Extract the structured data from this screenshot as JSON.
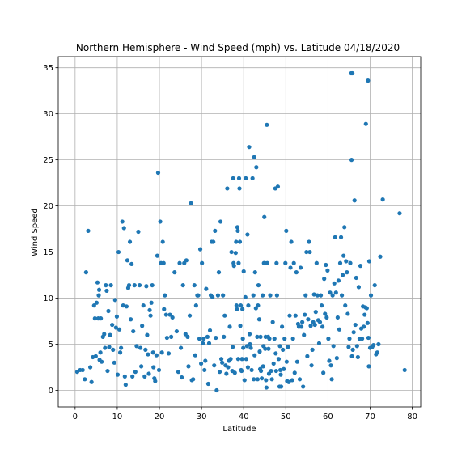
{
  "chart_data": {
    "type": "scatter",
    "title": "Northern Hemisphere - Wind Speed (mph) vs. Latitude 04/18/2020",
    "xlabel": "Latitude",
    "ylabel": "Wind Speed",
    "xlim": [
      -4,
      82
    ],
    "ylim": [
      -1.8,
      36.2
    ],
    "xticks": [
      0,
      10,
      20,
      30,
      40,
      50,
      60,
      70,
      80
    ],
    "yticks": [
      0,
      5,
      10,
      15,
      20,
      25,
      30,
      35
    ],
    "grid": true,
    "marker_color": "#1f77b4",
    "points": [
      [
        0.5,
        2.0
      ],
      [
        1.2,
        2.2
      ],
      [
        1.8,
        2.2
      ],
      [
        2.3,
        1.2
      ],
      [
        2.6,
        12.8
      ],
      [
        3.1,
        17.3
      ],
      [
        3.6,
        2.5
      ],
      [
        3.9,
        0.9
      ],
      [
        4.2,
        3.6
      ],
      [
        4.5,
        9.2
      ],
      [
        4.7,
        7.8
      ],
      [
        4.9,
        3.7
      ],
      [
        5.1,
        9.5
      ],
      [
        5.3,
        11.7
      ],
      [
        5.5,
        7.8
      ],
      [
        5.6,
        10.3
      ],
      [
        5.7,
        10.9
      ],
      [
        5.8,
        3.3
      ],
      [
        6.0,
        4.1
      ],
      [
        6.1,
        7.8
      ],
      [
        6.3,
        3.1
      ],
      [
        6.6,
        5.8
      ],
      [
        6.9,
        6.1
      ],
      [
        7.1,
        4.6
      ],
      [
        7.3,
        11.4
      ],
      [
        7.5,
        10.8
      ],
      [
        7.7,
        2.1
      ],
      [
        7.9,
        8.6
      ],
      [
        8.1,
        4.7
      ],
      [
        8.3,
        6.0
      ],
      [
        8.5,
        11.4
      ],
      [
        8.8,
        7.1
      ],
      [
        9.0,
        4.4
      ],
      [
        9.3,
        3.0
      ],
      [
        9.5,
        9.8
      ],
      [
        9.7,
        6.8
      ],
      [
        9.9,
        8.0
      ],
      [
        10.1,
        1.7
      ],
      [
        10.3,
        15.0
      ],
      [
        10.5,
        6.6
      ],
      [
        10.7,
        4.1
      ],
      [
        10.9,
        4.6
      ],
      [
        11.2,
        18.3
      ],
      [
        11.4,
        9.2
      ],
      [
        11.6,
        17.6
      ],
      [
        11.8,
        1.5
      ],
      [
        12.0,
        0.6
      ],
      [
        12.2,
        9.1
      ],
      [
        12.4,
        14.1
      ],
      [
        12.6,
        11.1
      ],
      [
        12.8,
        11.4
      ],
      [
        13.0,
        16.1
      ],
      [
        13.2,
        7.7
      ],
      [
        13.4,
        13.7
      ],
      [
        13.6,
        1.5
      ],
      [
        13.8,
        6.4
      ],
      [
        14.1,
        11.4
      ],
      [
        14.3,
        2.0
      ],
      [
        14.6,
        4.8
      ],
      [
        15.0,
        17.2
      ],
      [
        15.3,
        11.4
      ],
      [
        15.5,
        4.6
      ],
      [
        15.7,
        2.6
      ],
      [
        15.9,
        7.0
      ],
      [
        16.2,
        9.2
      ],
      [
        16.5,
        1.5
      ],
      [
        16.7,
        4.4
      ],
      [
        16.9,
        11.3
      ],
      [
        17.1,
        6.0
      ],
      [
        17.3,
        3.9
      ],
      [
        17.5,
        1.8
      ],
      [
        17.7,
        8.7
      ],
      [
        17.9,
        8.1
      ],
      [
        18.1,
        9.5
      ],
      [
        18.3,
        11.4
      ],
      [
        18.5,
        4.1
      ],
      [
        18.6,
        2.5
      ],
      [
        18.8,
        1.3
      ],
      [
        19.0,
        1.0
      ],
      [
        19.3,
        3.8
      ],
      [
        19.5,
        14.6
      ],
      [
        19.7,
        23.6
      ],
      [
        19.9,
        2.2
      ],
      [
        20.2,
        18.3
      ],
      [
        20.4,
        13.8
      ],
      [
        20.6,
        4.1
      ],
      [
        20.8,
        16.1
      ],
      [
        21.0,
        13.8
      ],
      [
        21.1,
        8.8
      ],
      [
        21.3,
        10.3
      ],
      [
        21.6,
        8.2
      ],
      [
        21.8,
        5.7
      ],
      [
        22.2,
        4.0
      ],
      [
        22.5,
        8.2
      ],
      [
        22.8,
        5.8
      ],
      [
        23.1,
        7.9
      ],
      [
        23.6,
        12.8
      ],
      [
        24.1,
        6.4
      ],
      [
        24.5,
        2.0
      ],
      [
        24.8,
        13.8
      ],
      [
        25.1,
        4.6
      ],
      [
        25.3,
        1.4
      ],
      [
        25.6,
        11.4
      ],
      [
        25.9,
        13.8
      ],
      [
        26.2,
        6.1
      ],
      [
        26.4,
        14.1
      ],
      [
        26.7,
        5.8
      ],
      [
        26.9,
        2.6
      ],
      [
        27.2,
        8.1
      ],
      [
        27.5,
        20.3
      ],
      [
        27.7,
        1.1
      ],
      [
        28.0,
        1.2
      ],
      [
        28.3,
        11.4
      ],
      [
        28.5,
        3.8
      ],
      [
        28.7,
        9.2
      ],
      [
        29.0,
        10.3
      ],
      [
        29.2,
        10.3
      ],
      [
        29.5,
        5.6
      ],
      [
        29.7,
        15.3
      ],
      [
        29.9,
        2.9
      ],
      [
        30.1,
        13.8
      ],
      [
        30.3,
        5.1
      ],
      [
        30.5,
        5.6
      ],
      [
        30.7,
        2.2
      ],
      [
        30.9,
        3.2
      ],
      [
        31.1,
        11.0
      ],
      [
        31.4,
        5.8
      ],
      [
        31.6,
        0.7
      ],
      [
        31.8,
        5.1
      ],
      [
        32.0,
        6.5
      ],
      [
        32.2,
        10.3
      ],
      [
        32.4,
        16.1
      ],
      [
        32.6,
        10.1
      ],
      [
        32.8,
        16.1
      ],
      [
        33.0,
        2.7
      ],
      [
        33.2,
        17.3
      ],
      [
        33.4,
        5.7
      ],
      [
        33.6,
        0.0
      ],
      [
        33.9,
        10.3
      ],
      [
        34.1,
        12.8
      ],
      [
        34.3,
        2.0
      ],
      [
        34.5,
        18.3
      ],
      [
        34.7,
        3.4
      ],
      [
        34.9,
        3.0
      ],
      [
        35.1,
        10.3
      ],
      [
        35.3,
        5.8
      ],
      [
        35.5,
        8.1
      ],
      [
        35.7,
        2.7
      ],
      [
        35.9,
        1.8
      ],
      [
        36.1,
        21.9
      ],
      [
        36.3,
        2.5
      ],
      [
        36.5,
        3.2
      ],
      [
        36.7,
        6.9
      ],
      [
        36.9,
        3.4
      ],
      [
        37.1,
        15.0
      ],
      [
        37.3,
        2.1
      ],
      [
        37.4,
        4.7
      ],
      [
        37.5,
        23.0
      ],
      [
        37.6,
        13.8
      ],
      [
        37.7,
        13.5
      ],
      [
        37.9,
        1.9
      ],
      [
        38.1,
        14.9
      ],
      [
        38.2,
        16.1
      ],
      [
        38.3,
        9.2
      ],
      [
        38.4,
        8.8
      ],
      [
        38.5,
        17.7
      ],
      [
        38.6,
        17.3
      ],
      [
        38.7,
        3.4
      ],
      [
        38.8,
        13.8
      ],
      [
        38.9,
        23.0
      ],
      [
        39.0,
        21.9
      ],
      [
        39.1,
        16.1
      ],
      [
        39.2,
        7.0
      ],
      [
        39.3,
        9.2
      ],
      [
        39.4,
        2.2
      ],
      [
        39.5,
        2.1
      ],
      [
        39.6,
        3.4
      ],
      [
        39.7,
        8.8
      ],
      [
        39.8,
        5.6
      ],
      [
        39.9,
        4.6
      ],
      [
        40.0,
        12.9
      ],
      [
        40.2,
        1.1
      ],
      [
        40.4,
        10.1
      ],
      [
        40.5,
        23.0
      ],
      [
        40.6,
        3.4
      ],
      [
        40.8,
        4.8
      ],
      [
        40.9,
        16.9
      ],
      [
        41.0,
        2.5
      ],
      [
        41.1,
        9.2
      ],
      [
        41.3,
        26.4
      ],
      [
        41.4,
        6.1
      ],
      [
        41.5,
        5.0
      ],
      [
        41.7,
        4.6
      ],
      [
        41.9,
        2.2
      ],
      [
        42.1,
        23.0
      ],
      [
        42.3,
        10.3
      ],
      [
        42.4,
        1.2
      ],
      [
        42.5,
        25.3
      ],
      [
        42.6,
        3.8
      ],
      [
        42.7,
        12.8
      ],
      [
        42.9,
        8.9
      ],
      [
        43.0,
        24.2
      ],
      [
        43.2,
        5.8
      ],
      [
        43.3,
        1.2
      ],
      [
        43.4,
        9.2
      ],
      [
        43.5,
        11.4
      ],
      [
        43.7,
        7.7
      ],
      [
        43.8,
        4.2
      ],
      [
        43.9,
        2.3
      ],
      [
        44.0,
        5.8
      ],
      [
        44.1,
        2.1
      ],
      [
        44.3,
        1.3
      ],
      [
        44.5,
        10.3
      ],
      [
        44.6,
        2.6
      ],
      [
        44.7,
        4.8
      ],
      [
        44.8,
        13.8
      ],
      [
        44.9,
        18.8
      ],
      [
        45.0,
        13.8
      ],
      [
        45.1,
        4.5
      ],
      [
        45.2,
        5.8
      ],
      [
        45.3,
        1.1
      ],
      [
        45.4,
        0.3
      ],
      [
        45.5,
        28.8
      ],
      [
        45.6,
        13.8
      ],
      [
        45.8,
        5.8
      ],
      [
        45.9,
        4.5
      ],
      [
        46.0,
        1.8
      ],
      [
        46.1,
        5.6
      ],
      [
        46.3,
        10.3
      ],
      [
        46.5,
        2.1
      ],
      [
        46.7,
        1.2
      ],
      [
        46.9,
        7.4
      ],
      [
        47.1,
        2.9
      ],
      [
        47.3,
        5.6
      ],
      [
        47.5,
        21.9
      ],
      [
        47.6,
        4.0
      ],
      [
        47.7,
        2.1
      ],
      [
        47.8,
        13.8
      ],
      [
        47.9,
        10.3
      ],
      [
        48.1,
        22.1
      ],
      [
        48.3,
        3.4
      ],
      [
        48.5,
        0.4
      ],
      [
        48.6,
        4.8
      ],
      [
        48.7,
        2.2
      ],
      [
        48.8,
        1.7
      ],
      [
        48.9,
        0.4
      ],
      [
        49.1,
        6.9
      ],
      [
        49.3,
        4.4
      ],
      [
        49.5,
        2.3
      ],
      [
        49.7,
        5.6
      ],
      [
        49.9,
        13.8
      ],
      [
        50.1,
        17.3
      ],
      [
        50.2,
        3.1
      ],
      [
        50.3,
        1.0
      ],
      [
        50.5,
        4.7
      ],
      [
        50.7,
        0.9
      ],
      [
        50.9,
        8.1
      ],
      [
        51.1,
        13.3
      ],
      [
        51.3,
        16.1
      ],
      [
        51.5,
        1.1
      ],
      [
        51.7,
        5.6
      ],
      [
        51.9,
        13.8
      ],
      [
        52.1,
        1.9
      ],
      [
        52.3,
        8.1
      ],
      [
        52.5,
        12.8
      ],
      [
        52.7,
        3.1
      ],
      [
        52.9,
        7.2
      ],
      [
        53.1,
        6.9
      ],
      [
        53.3,
        1.2
      ],
      [
        53.5,
        13.3
      ],
      [
        53.7,
        6.9
      ],
      [
        53.9,
        7.4
      ],
      [
        54.1,
        0.4
      ],
      [
        54.3,
        6.0
      ],
      [
        54.5,
        8.2
      ],
      [
        54.7,
        10.3
      ],
      [
        54.9,
        15.0
      ],
      [
        55.1,
        3.7
      ],
      [
        55.3,
        7.7
      ],
      [
        55.5,
        16.1
      ],
      [
        55.7,
        15.0
      ],
      [
        55.9,
        7.0
      ],
      [
        56.1,
        2.7
      ],
      [
        56.3,
        4.4
      ],
      [
        56.5,
        7.4
      ],
      [
        56.7,
        10.4
      ],
      [
        56.9,
        7.1
      ],
      [
        57.1,
        8.5
      ],
      [
        57.3,
        13.8
      ],
      [
        57.5,
        10.3
      ],
      [
        57.7,
        7.6
      ],
      [
        57.9,
        5.1
      ],
      [
        58.1,
        7.4
      ],
      [
        58.3,
        10.3
      ],
      [
        58.5,
        9.2
      ],
      [
        58.7,
        6.9
      ],
      [
        58.9,
        1.9
      ],
      [
        59.1,
        12.1
      ],
      [
        59.3,
        8.3
      ],
      [
        59.5,
        13.6
      ],
      [
        59.7,
        7.9
      ],
      [
        59.9,
        13.0
      ],
      [
        60.1,
        5.6
      ],
      [
        60.3,
        3.2
      ],
      [
        60.5,
        10.6
      ],
      [
        60.7,
        2.7
      ],
      [
        60.9,
        1.2
      ],
      [
        61.1,
        10.3
      ],
      [
        61.3,
        4.8
      ],
      [
        61.5,
        11.6
      ],
      [
        61.7,
        16.6
      ],
      [
        61.9,
        10.6
      ],
      [
        62.1,
        3.5
      ],
      [
        62.3,
        7.9
      ],
      [
        62.5,
        11.9
      ],
      [
        62.7,
        6.6
      ],
      [
        62.9,
        13.8
      ],
      [
        63.1,
        16.6
      ],
      [
        63.3,
        10.3
      ],
      [
        63.5,
        12.5
      ],
      [
        63.7,
        14.6
      ],
      [
        63.9,
        17.7
      ],
      [
        64.1,
        9.2
      ],
      [
        64.3,
        14.0
      ],
      [
        64.5,
        12.8
      ],
      [
        64.7,
        8.3
      ],
      [
        64.9,
        4.7
      ],
      [
        65.1,
        5.6
      ],
      [
        65.3,
        13.8
      ],
      [
        65.5,
        34.4
      ],
      [
        65.6,
        25.0
      ],
      [
        65.7,
        3.7
      ],
      [
        65.8,
        34.4
      ],
      [
        65.9,
        4.4
      ],
      [
        66.1,
        6.3
      ],
      [
        66.3,
        20.6
      ],
      [
        66.5,
        7.1
      ],
      [
        66.7,
        12.2
      ],
      [
        66.9,
        4.8
      ],
      [
        67.1,
        3.6
      ],
      [
        67.3,
        11.2
      ],
      [
        67.5,
        5.6
      ],
      [
        67.7,
        13.5
      ],
      [
        67.9,
        6.7
      ],
      [
        68.1,
        5.6
      ],
      [
        68.3,
        9.1
      ],
      [
        68.5,
        6.9
      ],
      [
        68.7,
        8.2
      ],
      [
        68.9,
        9.0
      ],
      [
        69.0,
        28.9
      ],
      [
        69.2,
        8.9
      ],
      [
        69.4,
        7.3
      ],
      [
        69.5,
        33.6
      ],
      [
        69.6,
        5.7
      ],
      [
        69.7,
        2.6
      ],
      [
        69.8,
        14.0
      ],
      [
        70.0,
        4.6
      ],
      [
        70.2,
        10.3
      ],
      [
        70.5,
        4.7
      ],
      [
        70.8,
        4.9
      ],
      [
        71.1,
        11.4
      ],
      [
        71.4,
        3.9
      ],
      [
        71.7,
        4.1
      ],
      [
        72.0,
        5.0
      ],
      [
        72.4,
        14.5
      ],
      [
        73.0,
        20.7
      ],
      [
        77.0,
        19.2
      ],
      [
        78.2,
        2.2
      ]
    ]
  }
}
